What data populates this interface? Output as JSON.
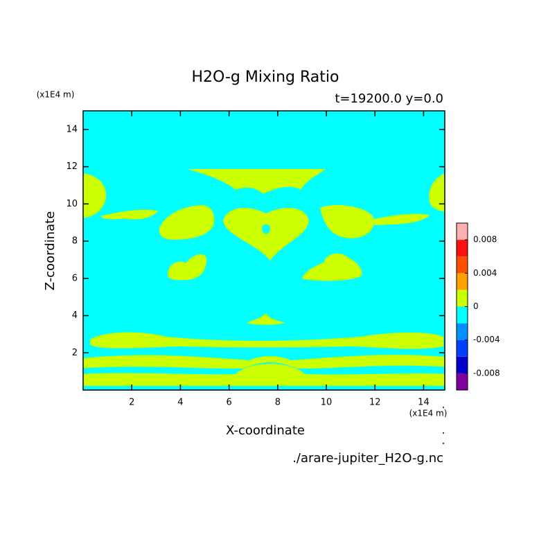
{
  "chart_data": {
    "type": "contour",
    "title": "H2O-g Mixing Ratio",
    "subtitle": "t=19200.0 y=0.0",
    "x_label": "X-coordinate",
    "y_label": "Z-coordinate",
    "x_unit": "(x1E4 m)",
    "y_unit": "(x1E4 m)",
    "source": "./arare-jupiter_H2O-g.nc",
    "xlim": [
      0,
      14.87
    ],
    "ylim": [
      0,
      15
    ],
    "xticks": [
      2,
      4,
      6,
      8,
      10,
      12,
      14
    ],
    "yticks": [
      2,
      4,
      6,
      8,
      10,
      12,
      14
    ],
    "levels": [
      -0.01,
      -0.008,
      -0.006,
      -0.004,
      -0.002,
      0,
      0.002,
      0.004,
      0.006,
      0.008,
      0.01
    ],
    "colors": [
      "#8000a0",
      "#0000c8",
      "#0040ff",
      "#0090ff",
      "#00ffff",
      "#ccff00",
      "#ffa000",
      "#ff5000",
      "#ff1010",
      "#ffb0b0"
    ],
    "cbar_ticks": [
      -0.008,
      -0.004,
      0,
      0.004,
      0.008
    ]
  }
}
